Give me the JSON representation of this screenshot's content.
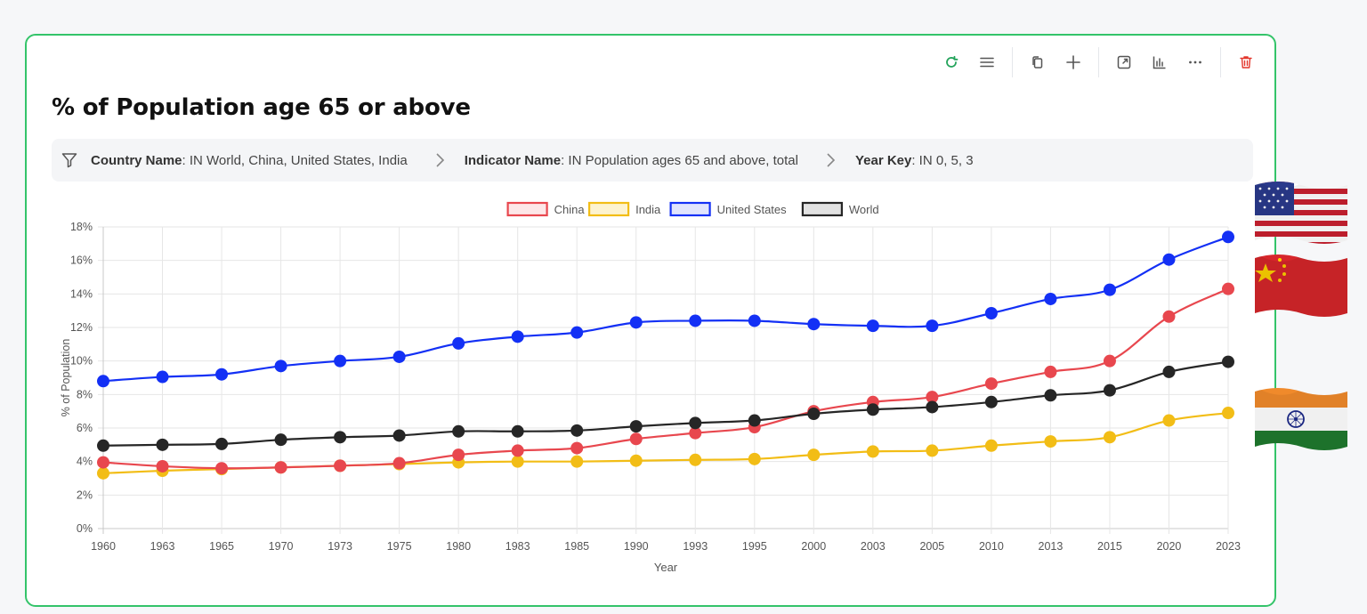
{
  "title": "% of Population age 65 or above",
  "toolbar": {
    "icons": [
      "refresh-icon",
      "menu-icon",
      "copy-icon",
      "plus-icon",
      "expand-icon",
      "chart-bars-icon",
      "more-icon",
      "trash-icon"
    ]
  },
  "filters": [
    {
      "key": "Country Name",
      "value": ": IN World, China, United States, India"
    },
    {
      "key": "Indicator Name",
      "value": ": IN Population ages 65 and above, total"
    },
    {
      "key": "Year Key",
      "value": ": IN 0, 5, 3"
    }
  ],
  "colors": {
    "border": "#34c46a",
    "china": "#e8474e",
    "india": "#f2bd16",
    "united_states": "#1330f5",
    "world": "#262626",
    "refresh": "#22a35a",
    "trash": "#e3362b"
  },
  "flags": [
    "us-flag-icon",
    "china-flag-icon",
    "india-flag-icon"
  ],
  "chart_data": {
    "type": "line",
    "title": "",
    "xlabel": "Year",
    "ylabel": "% of Population",
    "ylim": [
      0,
      18
    ],
    "y_ticks": [
      "0%",
      "2%",
      "4%",
      "6%",
      "8%",
      "10%",
      "12%",
      "14%",
      "16%",
      "18%"
    ],
    "grid": true,
    "legend_position": "top",
    "categories": [
      "1960",
      "1963",
      "1965",
      "1970",
      "1973",
      "1975",
      "1980",
      "1983",
      "1985",
      "1990",
      "1993",
      "1995",
      "2000",
      "2003",
      "2005",
      "2010",
      "2013",
      "2015",
      "2020",
      "2023"
    ],
    "series": [
      {
        "name": "China",
        "color": "#e8474e",
        "values": [
          3.95,
          3.72,
          3.6,
          3.65,
          3.75,
          3.9,
          4.4,
          4.65,
          4.8,
          5.35,
          5.7,
          6.05,
          7.0,
          7.55,
          7.85,
          8.65,
          9.35,
          10.0,
          12.65,
          14.3
        ]
      },
      {
        "name": "India",
        "color": "#f2bd16",
        "values": [
          3.3,
          3.45,
          3.55,
          3.65,
          3.75,
          3.85,
          3.95,
          4.0,
          4.0,
          4.05,
          4.1,
          4.15,
          4.4,
          4.6,
          4.65,
          4.95,
          5.2,
          5.45,
          6.45,
          6.9
        ]
      },
      {
        "name": "United States",
        "color": "#1330f5",
        "values": [
          8.8,
          9.05,
          9.2,
          9.7,
          10.0,
          10.25,
          11.05,
          11.45,
          11.7,
          12.3,
          12.4,
          12.4,
          12.2,
          12.1,
          12.1,
          12.85,
          13.7,
          14.25,
          16.05,
          17.4
        ]
      },
      {
        "name": "World",
        "color": "#262626",
        "values": [
          4.95,
          5.0,
          5.05,
          5.3,
          5.45,
          5.55,
          5.8,
          5.8,
          5.85,
          6.1,
          6.3,
          6.45,
          6.85,
          7.1,
          7.25,
          7.55,
          7.95,
          8.25,
          9.35,
          9.95
        ]
      }
    ]
  }
}
